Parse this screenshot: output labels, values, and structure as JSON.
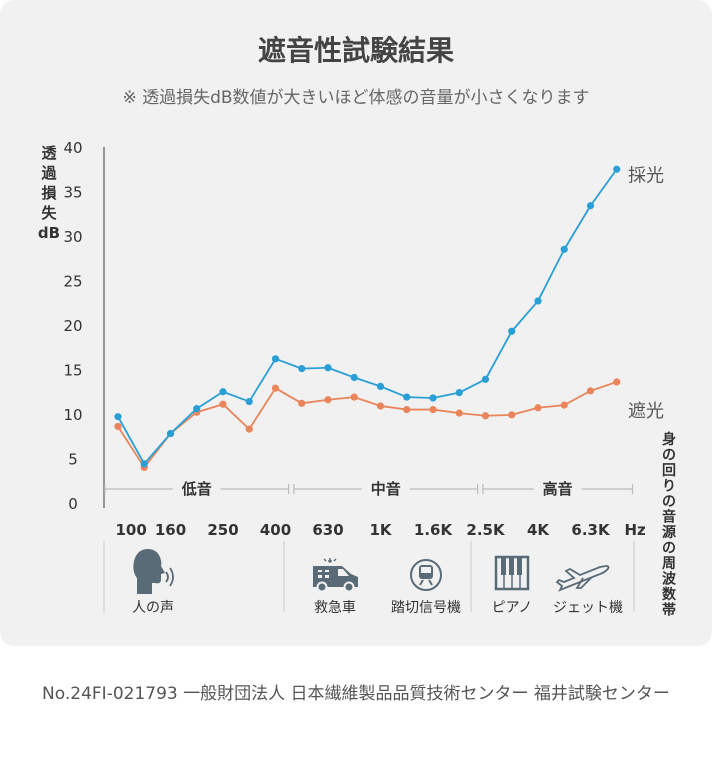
{
  "chart_data": {
    "type": "line",
    "title": "遮音性試験結果",
    "subtitle": "※ 透過損失dB数値が大きいほど体感の音量が小さくなります",
    "ylabel_chars": [
      "透",
      "過",
      "損",
      "失",
      "dB"
    ],
    "right_label_chars": [
      "身",
      "の",
      "回",
      "り",
      "の",
      "音",
      "源",
      "の",
      "周",
      "波",
      "数",
      "帯"
    ],
    "ylim": [
      0,
      40
    ],
    "yticks": [
      "0",
      "5",
      "10",
      "15",
      "20",
      "25",
      "30",
      "35",
      "40"
    ],
    "x_count": 20,
    "x_tick_labels": [
      {
        "index": 0.5,
        "label": "100"
      },
      {
        "index": 2,
        "label": "160"
      },
      {
        "index": 4,
        "label": "250"
      },
      {
        "index": 6,
        "label": "400"
      },
      {
        "index": 8,
        "label": "630"
      },
      {
        "index": 10,
        "label": "1K"
      },
      {
        "index": 12,
        "label": "1.6K"
      },
      {
        "index": 14,
        "label": "2.5K"
      },
      {
        "index": 16,
        "label": "4K"
      },
      {
        "index": 18,
        "label": "6.3K"
      },
      {
        "index": 19.7,
        "label": "Hz"
      }
    ],
    "bands": [
      {
        "label": "低音",
        "start": -0.5,
        "end": 6.5
      },
      {
        "label": "中音",
        "start": 6.7,
        "end": 13.7
      },
      {
        "label": "高音",
        "start": 13.9,
        "end": 19.6
      }
    ],
    "series": [
      {
        "name": "採光",
        "color": "#2a9fd6",
        "values": [
          9.7,
          4.4,
          7.8,
          10.6,
          12.5,
          11.4,
          16.2,
          15.1,
          15.2,
          14.1,
          13.1,
          11.9,
          11.8,
          12.4,
          13.9,
          19.3,
          22.7,
          28.5,
          33.4,
          37.5
        ]
      },
      {
        "name": "遮光",
        "color": "#e8855a",
        "values": [
          8.6,
          4.0,
          7.8,
          10.2,
          11.1,
          8.3,
          12.9,
          11.2,
          11.6,
          11.9,
          10.9,
          10.5,
          10.5,
          10.1,
          9.8,
          9.9,
          10.7,
          11.0,
          12.6,
          13.6
        ]
      }
    ],
    "grid": false
  },
  "sources": [
    {
      "label": "人の声",
      "icon": "speaking-person-icon"
    },
    {
      "label": "救急車",
      "icon": "ambulance-icon"
    },
    {
      "label": "踏切信号機",
      "icon": "train-icon"
    },
    {
      "label": "ピアノ",
      "icon": "piano-icon"
    },
    {
      "label": "ジェット機",
      "icon": "airplane-icon"
    }
  ],
  "footer": "No.24FI-021793 一般財団法人 日本繊維製品品質技術センター  福井試験センター"
}
